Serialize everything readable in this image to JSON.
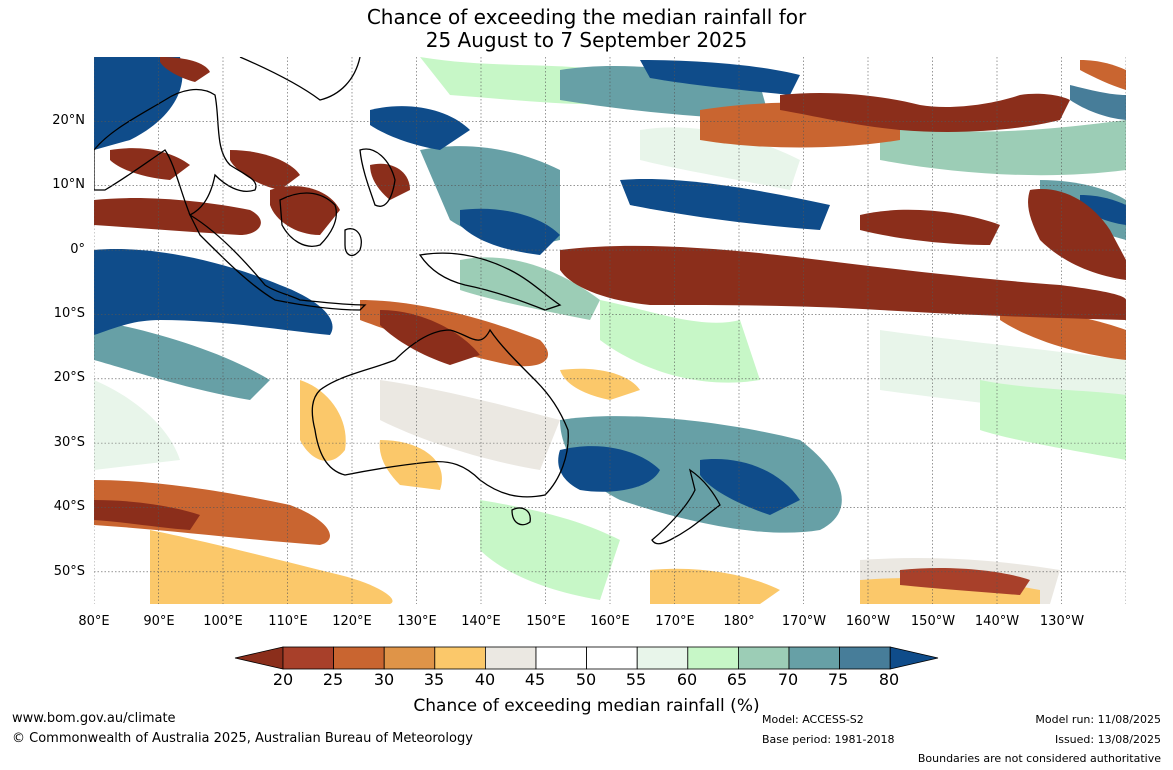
{
  "title": {
    "line1": "Chance of exceeding the median rainfall for",
    "line2": "25 August to 7 September 2025"
  },
  "map": {
    "lat_labels": [
      "20°N",
      "10°N",
      "0°",
      "10°S",
      "20°S",
      "30°S",
      "40°S",
      "50°S"
    ],
    "lon_labels": [
      "80°E",
      "90°E",
      "100°E",
      "110°E",
      "120°E",
      "130°E",
      "140°E",
      "150°E",
      "160°E",
      "170°E",
      "180°",
      "170°W",
      "160°W",
      "150°W",
      "140°W",
      "130°W"
    ],
    "lat_range": [
      -55,
      30
    ],
    "lon_range": [
      80,
      240
    ]
  },
  "colorbar": {
    "title": "Chance of exceeding median rainfall (%)",
    "tick_labels": [
      "20",
      "25",
      "30",
      "35",
      "40",
      "45",
      "50",
      "55",
      "60",
      "65",
      "70",
      "75",
      "80"
    ],
    "colors": [
      "#8b2e1b",
      "#a8402a",
      "#c96530",
      "#df9448",
      "#fbc86a",
      "#ebe8e2",
      "#ffffff",
      "#ffffff",
      "#e8f5ea",
      "#c7f7c7",
      "#9ccdb6",
      "#67a0a6",
      "#477d99",
      "#0f4c8a"
    ]
  },
  "footer": {
    "website": "www.bom.gov.au/climate",
    "copyright": "© Commonwealth of Australia 2025, Australian Bureau of Meteorology",
    "model": "Model: ACCESS-S2",
    "base_period": "Base period: 1981-2018",
    "model_run": "Model run: 11/08/2025",
    "issued": "Issued: 13/08/2025",
    "disclaimer": "Boundaries are not considered authoritative"
  }
}
